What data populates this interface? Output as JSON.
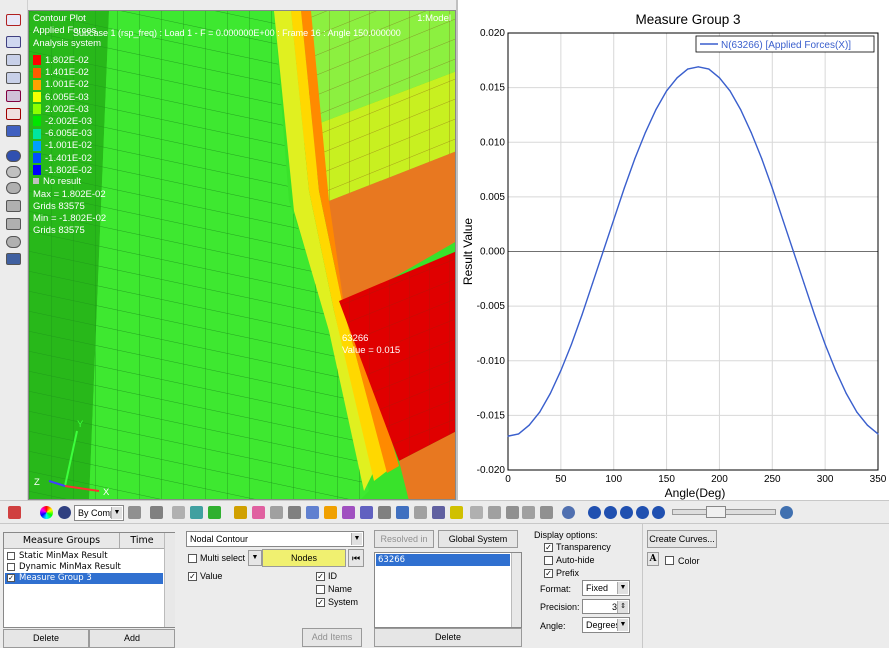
{
  "viewport": {
    "plot_type": "Contour Plot",
    "subtitle": "Applied Forces",
    "subcase": "Subcase 1 (rsp_freq) : Load 1 - F = 0.000000E+00 : Frame 16 : Angle 150.000000",
    "system": "Analysis system",
    "model_label": "1:Model",
    "legend": [
      {
        "label": "1.802E-02",
        "color": "#ff0000"
      },
      {
        "label": "1.401E-02",
        "color": "#ff5a00"
      },
      {
        "label": "1.001E-02",
        "color": "#ffa200"
      },
      {
        "label": "6.005E-03",
        "color": "#f5ff00"
      },
      {
        "label": "2.002E-03",
        "color": "#8cff00"
      },
      {
        "label": "-2.002E-03",
        "color": "#00e600"
      },
      {
        "label": "-6.005E-03",
        "color": "#00e6a0"
      },
      {
        "label": "-1.001E-02",
        "color": "#00a0ff"
      },
      {
        "label": "-1.401E-02",
        "color": "#0050ff"
      },
      {
        "label": "-1.802E-02",
        "color": "#0000ff"
      }
    ],
    "no_result": "No result",
    "max_line": "Max = 1.802E-02",
    "max_grid": "Grids 83575",
    "min_line": "Min = -1.802E-02",
    "min_grid": "Grids 83575",
    "node_id": "63266",
    "node_value": "Value = 0.015",
    "axis_y": "Y",
    "axis_z": "Z",
    "axis_x": "X"
  },
  "chart_data": {
    "type": "line",
    "title": "Measure Group 3",
    "xlabel": "Angle(Deg)",
    "ylabel": "Result Value",
    "xlim": [
      0,
      350
    ],
    "ylim": [
      -0.02,
      0.02
    ],
    "xticks": [
      0,
      50,
      100,
      150,
      200,
      250,
      300,
      350
    ],
    "yticks": [
      -0.02,
      -0.015,
      -0.01,
      -0.005,
      0.0,
      0.005,
      0.01,
      0.015,
      0.02
    ],
    "xtick_labels": [
      "0",
      "50",
      "100",
      "150",
      "200",
      "250",
      "300",
      "350"
    ],
    "ytick_labels": [
      "-0.020",
      "-0.015",
      "-0.010",
      "-0.005",
      "0.000",
      "0.005",
      "0.010",
      "0.015",
      "0.020"
    ],
    "grid": true,
    "legend_position": "top-right",
    "series": [
      {
        "name": "N(63266) [Applied Forces(X)]",
        "color": "#3a5fcd",
        "x": [
          0,
          10,
          20,
          30,
          40,
          50,
          60,
          70,
          80,
          90,
          100,
          110,
          120,
          130,
          140,
          150,
          160,
          170,
          180,
          190,
          200,
          210,
          220,
          230,
          240,
          250,
          260,
          270,
          280,
          290,
          300,
          310,
          320,
          330,
          340,
          350
        ],
        "y": [
          -0.0169,
          -0.0167,
          -0.0159,
          -0.0147,
          -0.013,
          -0.0109,
          -0.0085,
          -0.0058,
          -0.0029,
          0.0,
          0.0029,
          0.0058,
          0.0085,
          0.0109,
          0.013,
          0.0147,
          0.0159,
          0.0167,
          0.0169,
          0.0167,
          0.0159,
          0.0147,
          0.013,
          0.0109,
          0.0085,
          0.0058,
          0.0029,
          0.0,
          -0.0029,
          -0.0058,
          -0.0085,
          -0.0109,
          -0.013,
          -0.0147,
          -0.0159,
          -0.0167
        ]
      }
    ]
  },
  "bottom_toolbar": {
    "comp_label": "By Comp"
  },
  "measure_panel": {
    "col_groups": "Measure Groups",
    "col_time": "Time",
    "items": [
      {
        "label": "Static MinMax Result",
        "checked": false,
        "selected": false
      },
      {
        "label": "Dynamic MinMax Result",
        "checked": false,
        "selected": false
      },
      {
        "label": "Measure Group 3",
        "checked": true,
        "selected": true
      }
    ],
    "delete_label": "Delete",
    "add_label": "Add"
  },
  "contour_panel": {
    "type_value": "Nodal Contour",
    "multi_select": "Multi select",
    "entity_label": "Nodes",
    "value_label": "Value",
    "id_label": "ID",
    "name_label": "Name",
    "system_label": "System",
    "add_items": "Add Items"
  },
  "nodes_panel": {
    "resolved_label": "Resolved in",
    "global_label": "Global System",
    "node_item": "63266",
    "delete_label": "Delete"
  },
  "display_panel": {
    "title": "Display options:",
    "transparency": "Transparency",
    "autohide": "Auto-hide",
    "prefix": "Prefix",
    "format_label": "Format:",
    "format_value": "Fixed",
    "precision_label": "Precision:",
    "precision_value": "3",
    "angle_label": "Angle:",
    "angle_value": "Degrees"
  },
  "curves_panel": {
    "create_curves": "Create Curves...",
    "font_glyph": "A",
    "color_label": "Color"
  }
}
